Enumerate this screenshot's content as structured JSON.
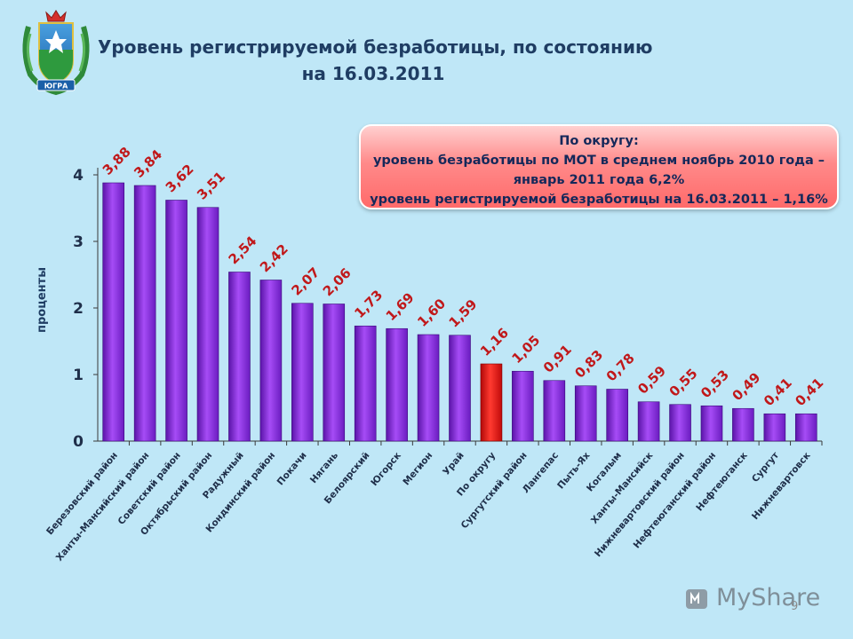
{
  "title": {
    "line1": "Уровень регистрируемой безработицы, по состоянию",
    "line2": "на 16.03.2011"
  },
  "emblem": {
    "label": "ЮГРА"
  },
  "infobox": {
    "line1": "По округу:",
    "line2": "уровень безработицы по МОТ в среднем ноябрь 2010 года –",
    "line3": "январь 2011 года 6,2%",
    "line4": "уровень регистрируемой безработицы на 16.03.2011 – 1,16%"
  },
  "watermark": {
    "text": "MyShare"
  },
  "page_number": "9",
  "chart_data": {
    "type": "bar",
    "ylabel": "проценты",
    "xlabel": "",
    "ylim": [
      0,
      4
    ],
    "yticks": [
      "0",
      "1",
      "2",
      "3",
      "4"
    ],
    "grid": false,
    "highlight_category": "По округу",
    "colors": {
      "default": "#8a2be2",
      "highlight": "#e81010",
      "label": "#c0181a",
      "axis": "#3a3a3a"
    },
    "categories": [
      "Березовский район",
      "Ханты-Мансийский район",
      "Советский район",
      "Октябрьский район",
      "Радужный",
      "Кондинский район",
      "Покачи",
      "Нягань",
      "Белоярский",
      "Югорск",
      "Мегион",
      "Урай",
      "По округу",
      "Сургутский район",
      "Лангепас",
      "Пыть-Ях",
      "Когалым",
      "Ханты-Мансийск",
      "Нижневартовский район",
      "Нефтеюганский район",
      "Нефтеюганск",
      "Сургут",
      "Нижневартовск"
    ],
    "values": [
      3.88,
      3.84,
      3.62,
      3.51,
      2.54,
      2.42,
      2.07,
      2.06,
      1.73,
      1.69,
      1.6,
      1.59,
      1.16,
      1.05,
      0.91,
      0.83,
      0.78,
      0.59,
      0.55,
      0.53,
      0.49,
      0.41,
      0.41
    ],
    "value_labels": [
      "3,88",
      "3,84",
      "3,62",
      "3,51",
      "2,54",
      "2,42",
      "2,07",
      "2,06",
      "1,73",
      "1,69",
      "1,60",
      "1,59",
      "1,16",
      "1,05",
      "0,91",
      "0,83",
      "0,78",
      "0,59",
      "0,55",
      "0,53",
      "0,49",
      "0,41",
      "0,41"
    ]
  }
}
